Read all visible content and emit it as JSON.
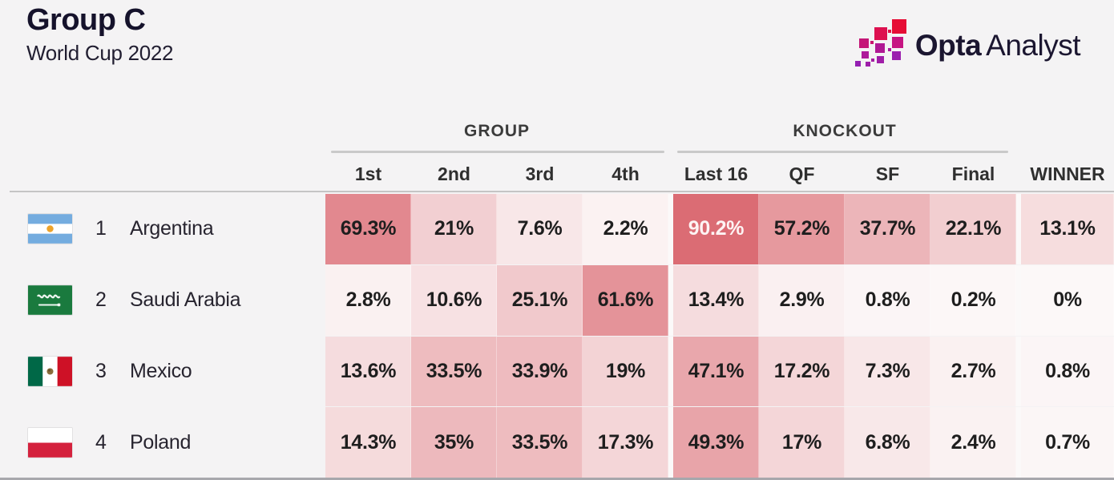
{
  "header": {
    "title": "Group C",
    "subtitle": "World Cup 2022"
  },
  "logo": {
    "name": "Opta Analyst",
    "word_bold": "Opta",
    "word_regular": "Analyst",
    "text_color": "#1b1630",
    "mark_colors": [
      "#e60d35",
      "#dd104f",
      "#c61482",
      "#c41677",
      "#b01894",
      "#9b1fae"
    ]
  },
  "chart_data": {
    "type": "heatmap",
    "title": "Group C",
    "subtitle": "World Cup 2022",
    "unit": "%",
    "columns": [
      "1st",
      "2nd",
      "3rd",
      "4th",
      "Last 16",
      "QF",
      "SF",
      "Final",
      "WINNER"
    ],
    "column_groups": [
      {
        "label": "GROUP",
        "columns": [
          "1st",
          "2nd",
          "3rd",
          "4th"
        ]
      },
      {
        "label": "KNOCKOUT",
        "columns": [
          "Last 16",
          "QF",
          "SF",
          "Final"
        ]
      },
      {
        "label": "",
        "columns": [
          "WINNER"
        ]
      }
    ],
    "rows": [
      {
        "rank": "1",
        "team": "Argentina",
        "flag": "argentina",
        "values": [
          69.3,
          21,
          7.6,
          2.2,
          90.2,
          57.2,
          37.7,
          22.1,
          13.1
        ]
      },
      {
        "rank": "2",
        "team": "Saudi Arabia",
        "flag": "saudi-arabia",
        "values": [
          2.8,
          10.6,
          25.1,
          61.6,
          13.4,
          2.9,
          0.8,
          0.2,
          0
        ]
      },
      {
        "rank": "3",
        "team": "Mexico",
        "flag": "mexico",
        "values": [
          13.6,
          33.5,
          33.9,
          19,
          47.1,
          17.2,
          7.3,
          2.7,
          0.8
        ]
      },
      {
        "rank": "4",
        "team": "Poland",
        "flag": "poland",
        "values": [
          14.3,
          35,
          33.5,
          17.3,
          49.3,
          17,
          6.8,
          2.4,
          0.7
        ]
      }
    ],
    "color_scale": {
      "type": "linear",
      "gamma": 0.85,
      "min": 0,
      "max": 100,
      "min_color": "#fcf8f8",
      "max_color": "#d85f68",
      "text_color": "#1e1e1e",
      "high_value_text_color": "#fdf4f4",
      "white_text_threshold": 80
    },
    "legend": "off",
    "grid": "off"
  }
}
